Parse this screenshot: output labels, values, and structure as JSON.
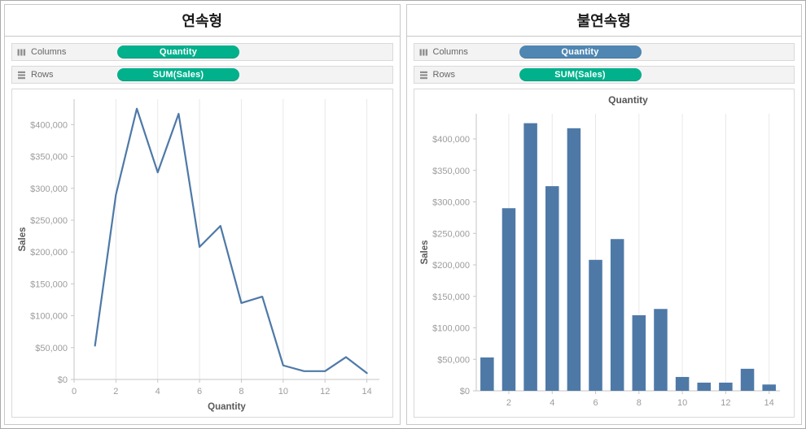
{
  "colors": {
    "pill_green": "#00b18c",
    "pill_blue": "#4f87b2",
    "series": "#4e79a7",
    "grid": "#e8e8e8",
    "axis": "#c6c6c6",
    "tick_text": "#9c9c9c",
    "axis_title": "#5a5a5a",
    "chart_title": "#555555"
  },
  "left_panel": {
    "title": "연속형",
    "columns_label": "Columns",
    "rows_label": "Rows",
    "columns_pill": "Quantity",
    "rows_pill": "SUM(Sales)"
  },
  "right_panel": {
    "title": "불연속형",
    "columns_label": "Columns",
    "rows_label": "Rows",
    "columns_pill": "Quantity",
    "rows_pill": "SUM(Sales)"
  },
  "chart_data": [
    {
      "type": "line",
      "title": "",
      "xlabel": "Quantity",
      "ylabel": "Sales",
      "x": [
        1,
        2,
        3,
        4,
        5,
        6,
        7,
        8,
        9,
        10,
        11,
        12,
        13,
        14
      ],
      "y": [
        53000,
        290000,
        425000,
        325000,
        417000,
        208000,
        241000,
        120000,
        130000,
        22000,
        13000,
        13000,
        35000,
        10000
      ],
      "xlim": [
        0,
        14.6
      ],
      "ylim": [
        0,
        440000
      ],
      "xticks": [
        0,
        2,
        4,
        6,
        8,
        10,
        12,
        14
      ],
      "yticks": [
        0,
        50000,
        100000,
        150000,
        200000,
        250000,
        300000,
        350000,
        400000
      ],
      "grid": "vertical-light",
      "legend": "none"
    },
    {
      "type": "bar",
      "title": "Quantity",
      "xlabel": "",
      "ylabel": "Sales",
      "categories": [
        1,
        2,
        3,
        4,
        5,
        6,
        7,
        8,
        9,
        10,
        11,
        12,
        13,
        14
      ],
      "values": [
        53000,
        290000,
        425000,
        325000,
        417000,
        208000,
        241000,
        120000,
        130000,
        22000,
        13000,
        13000,
        35000,
        10000
      ],
      "ylim": [
        0,
        440000
      ],
      "yticks": [
        0,
        50000,
        100000,
        150000,
        200000,
        250000,
        300000,
        350000,
        400000
      ],
      "xtick_labels": [
        2,
        4,
        6,
        8,
        10,
        12,
        14
      ],
      "grid": "vertical-light",
      "legend": "none"
    }
  ]
}
